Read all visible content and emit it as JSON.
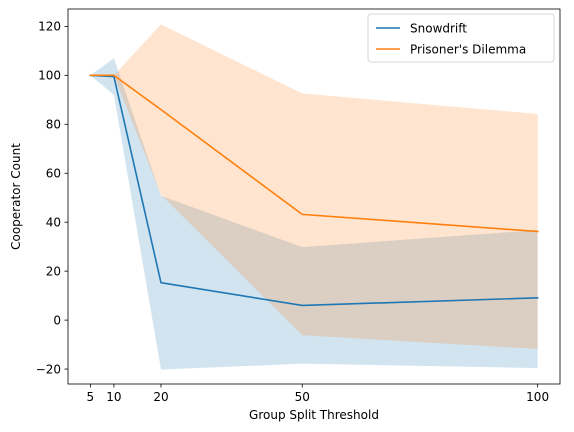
{
  "chart_data": {
    "type": "line",
    "title": "",
    "xlabel": "Group Split Threshold",
    "ylabel": "Cooperator Count",
    "x": [
      5,
      10,
      20,
      50,
      100
    ],
    "xlim": [
      0.25,
      104.75
    ],
    "ylim": [
      -26.1,
      127.1
    ],
    "xticks": [
      5,
      10,
      20,
      50,
      100
    ],
    "yticks": [
      -20,
      0,
      20,
      40,
      60,
      80,
      100,
      120
    ],
    "grid": false,
    "legend_position": "upper right",
    "series": [
      {
        "name": "Snowdrift",
        "color": "#1f77b4",
        "values": [
          100,
          99.5,
          15.3,
          6.0,
          9.1
        ],
        "band_upper": [
          100,
          107.0,
          50.8,
          29.8,
          36.8
        ],
        "band_lower": [
          100,
          92.0,
          -20.2,
          -17.8,
          -19.6
        ],
        "band_alpha": 0.2
      },
      {
        "name": "Prisoner's Dilemma",
        "color": "#ff7f0e",
        "values": [
          100,
          100,
          86.0,
          43.2,
          36.2
        ],
        "band_upper": [
          100,
          100,
          120.8,
          92.6,
          84.2
        ],
        "band_lower": [
          100,
          100,
          51.2,
          -6.2,
          -11.8
        ],
        "band_alpha": 0.2
      }
    ]
  }
}
